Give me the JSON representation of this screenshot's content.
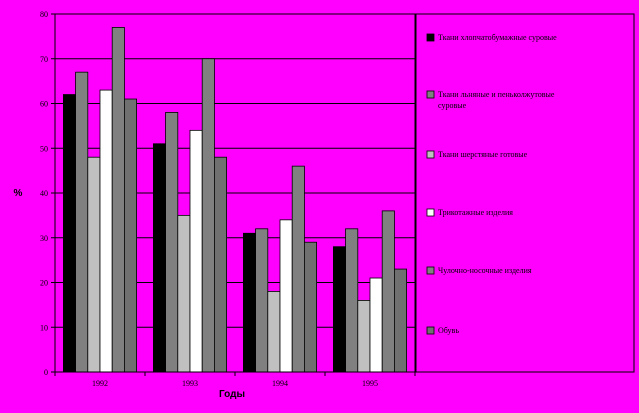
{
  "chart_data": {
    "type": "bar",
    "title": "",
    "xlabel": "Годы",
    "ylabel": "%",
    "ylim": [
      0,
      80
    ],
    "yticks": [
      0,
      10,
      20,
      30,
      40,
      50,
      60,
      70,
      80
    ],
    "grid": true,
    "legend_position": "right",
    "categories": [
      "1992",
      "1993",
      "1994",
      "1995"
    ],
    "series": [
      {
        "name": "Ткани хлопчатобумажные суровые",
        "color": "#000000",
        "values": [
          62,
          51,
          31,
          28
        ]
      },
      {
        "name": "Ткани льняные и пеньколжутовые суровые",
        "color": "#808080",
        "values": [
          67,
          58,
          32,
          32
        ]
      },
      {
        "name": "Ткани шерстяные готовые",
        "color": "#c0c0c0",
        "values": [
          48,
          35,
          18,
          16
        ]
      },
      {
        "name": "Трикотажные изделия",
        "color": "#ffffff",
        "values": [
          63,
          54,
          34,
          21
        ]
      },
      {
        "name": "Чулочно-носочные изделия",
        "color": "#808080",
        "values": [
          77,
          70,
          46,
          36
        ]
      },
      {
        "name": "Обувь",
        "color": "#707070",
        "values": [
          61,
          48,
          29,
          23
        ]
      }
    ]
  }
}
